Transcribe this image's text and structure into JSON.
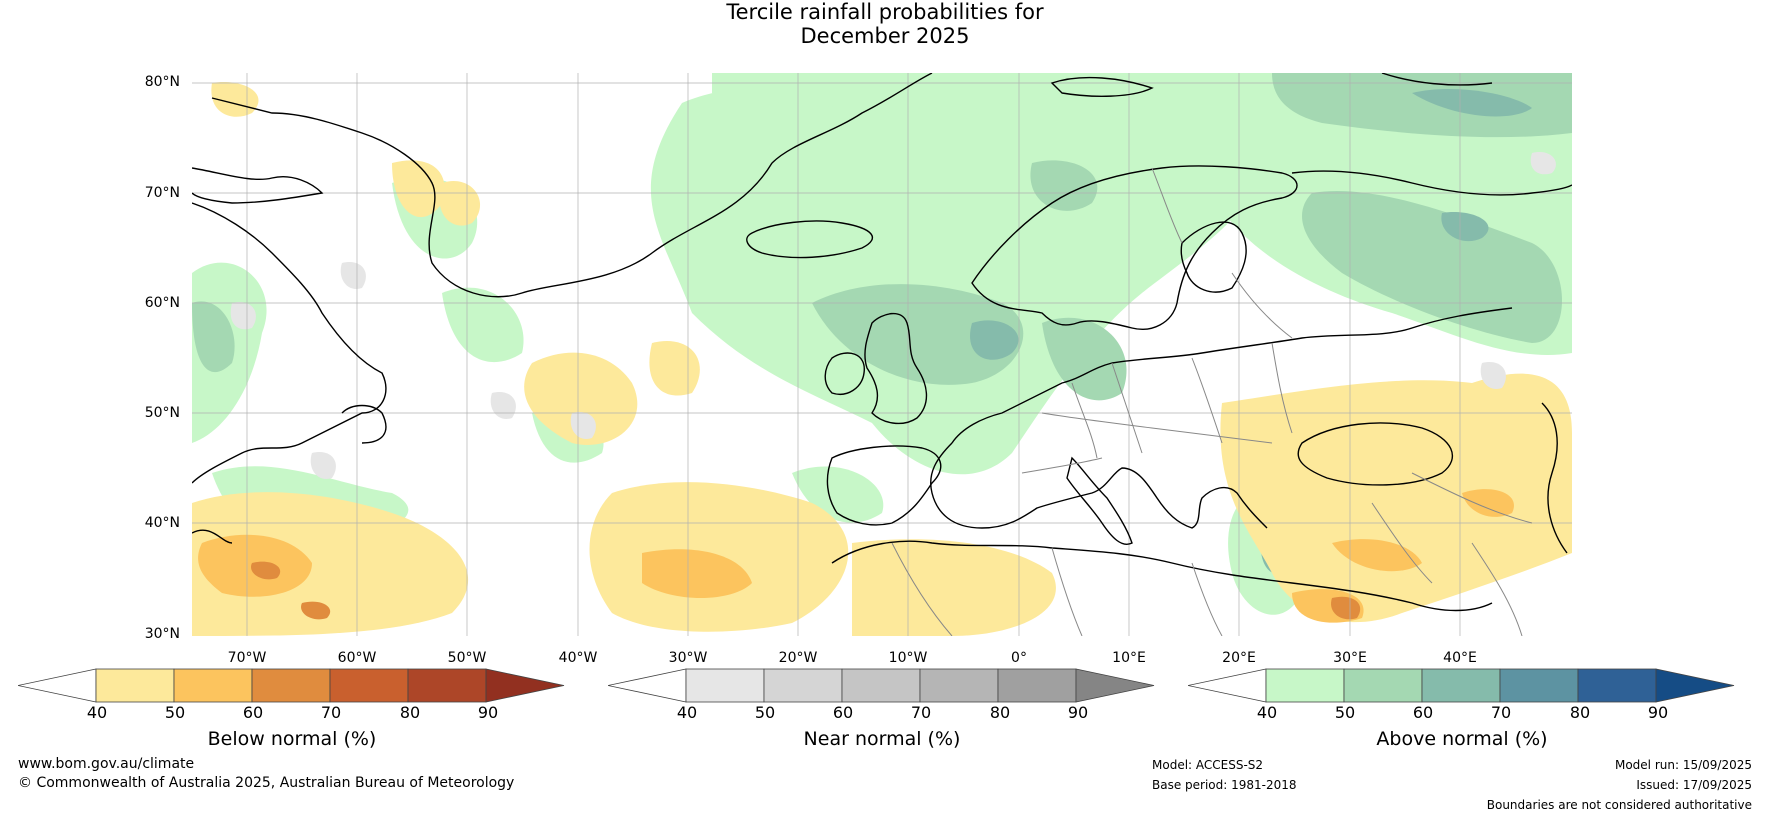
{
  "title_line1": "Tercile rainfall probabilities for",
  "title_line2": "December 2025",
  "map": {
    "lat_labels": [
      "80°N",
      "70°N",
      "60°N",
      "50°N",
      "40°N",
      "30°N"
    ],
    "lon_labels": [
      "70°W",
      "60°W",
      "50°W",
      "40°W",
      "30°W",
      "20°W",
      "10°W",
      "0°",
      "10°E",
      "20°E",
      "30°E",
      "40°E"
    ],
    "ocean_color": "#ffffff",
    "coast_color": "#000000",
    "border_color": "#888888"
  },
  "colorbars": [
    {
      "name": "below",
      "title": "Below normal (%)",
      "ticks": [
        "40",
        "50",
        "60",
        "70",
        "80",
        "90"
      ],
      "colors": [
        "#ffffff",
        "#fde99b",
        "#fcc45e",
        "#e08c3e",
        "#c9602e",
        "#ad4628",
        "#923020"
      ]
    },
    {
      "name": "near",
      "title": "Near normal (%)",
      "ticks": [
        "40",
        "50",
        "60",
        "70",
        "80",
        "90"
      ],
      "colors": [
        "#ffffff",
        "#e6e6e6",
        "#d5d5d5",
        "#c5c5c5",
        "#b5b5b5",
        "#a0a0a0",
        "#858585"
      ]
    },
    {
      "name": "above",
      "title": "Above normal (%)",
      "ticks": [
        "40",
        "50",
        "60",
        "70",
        "80",
        "90"
      ],
      "colors": [
        "#ffffff",
        "#c7f7c8",
        "#a4d8b2",
        "#85bbab",
        "#5d93a2",
        "#2f6196",
        "#154c85"
      ]
    }
  ],
  "footer": {
    "website": "www.bom.gov.au/climate",
    "copyright": "© Commonwealth of Australia 2025, Australian Bureau of Meteorology",
    "model": "Model: ACCESS-S2",
    "base_period": "Base period: 1981-2018",
    "model_run": "Model run: 15/09/2025",
    "issued": "Issued: 17/09/2025",
    "disclaimer": "Boundaries are not considered authoritative"
  }
}
